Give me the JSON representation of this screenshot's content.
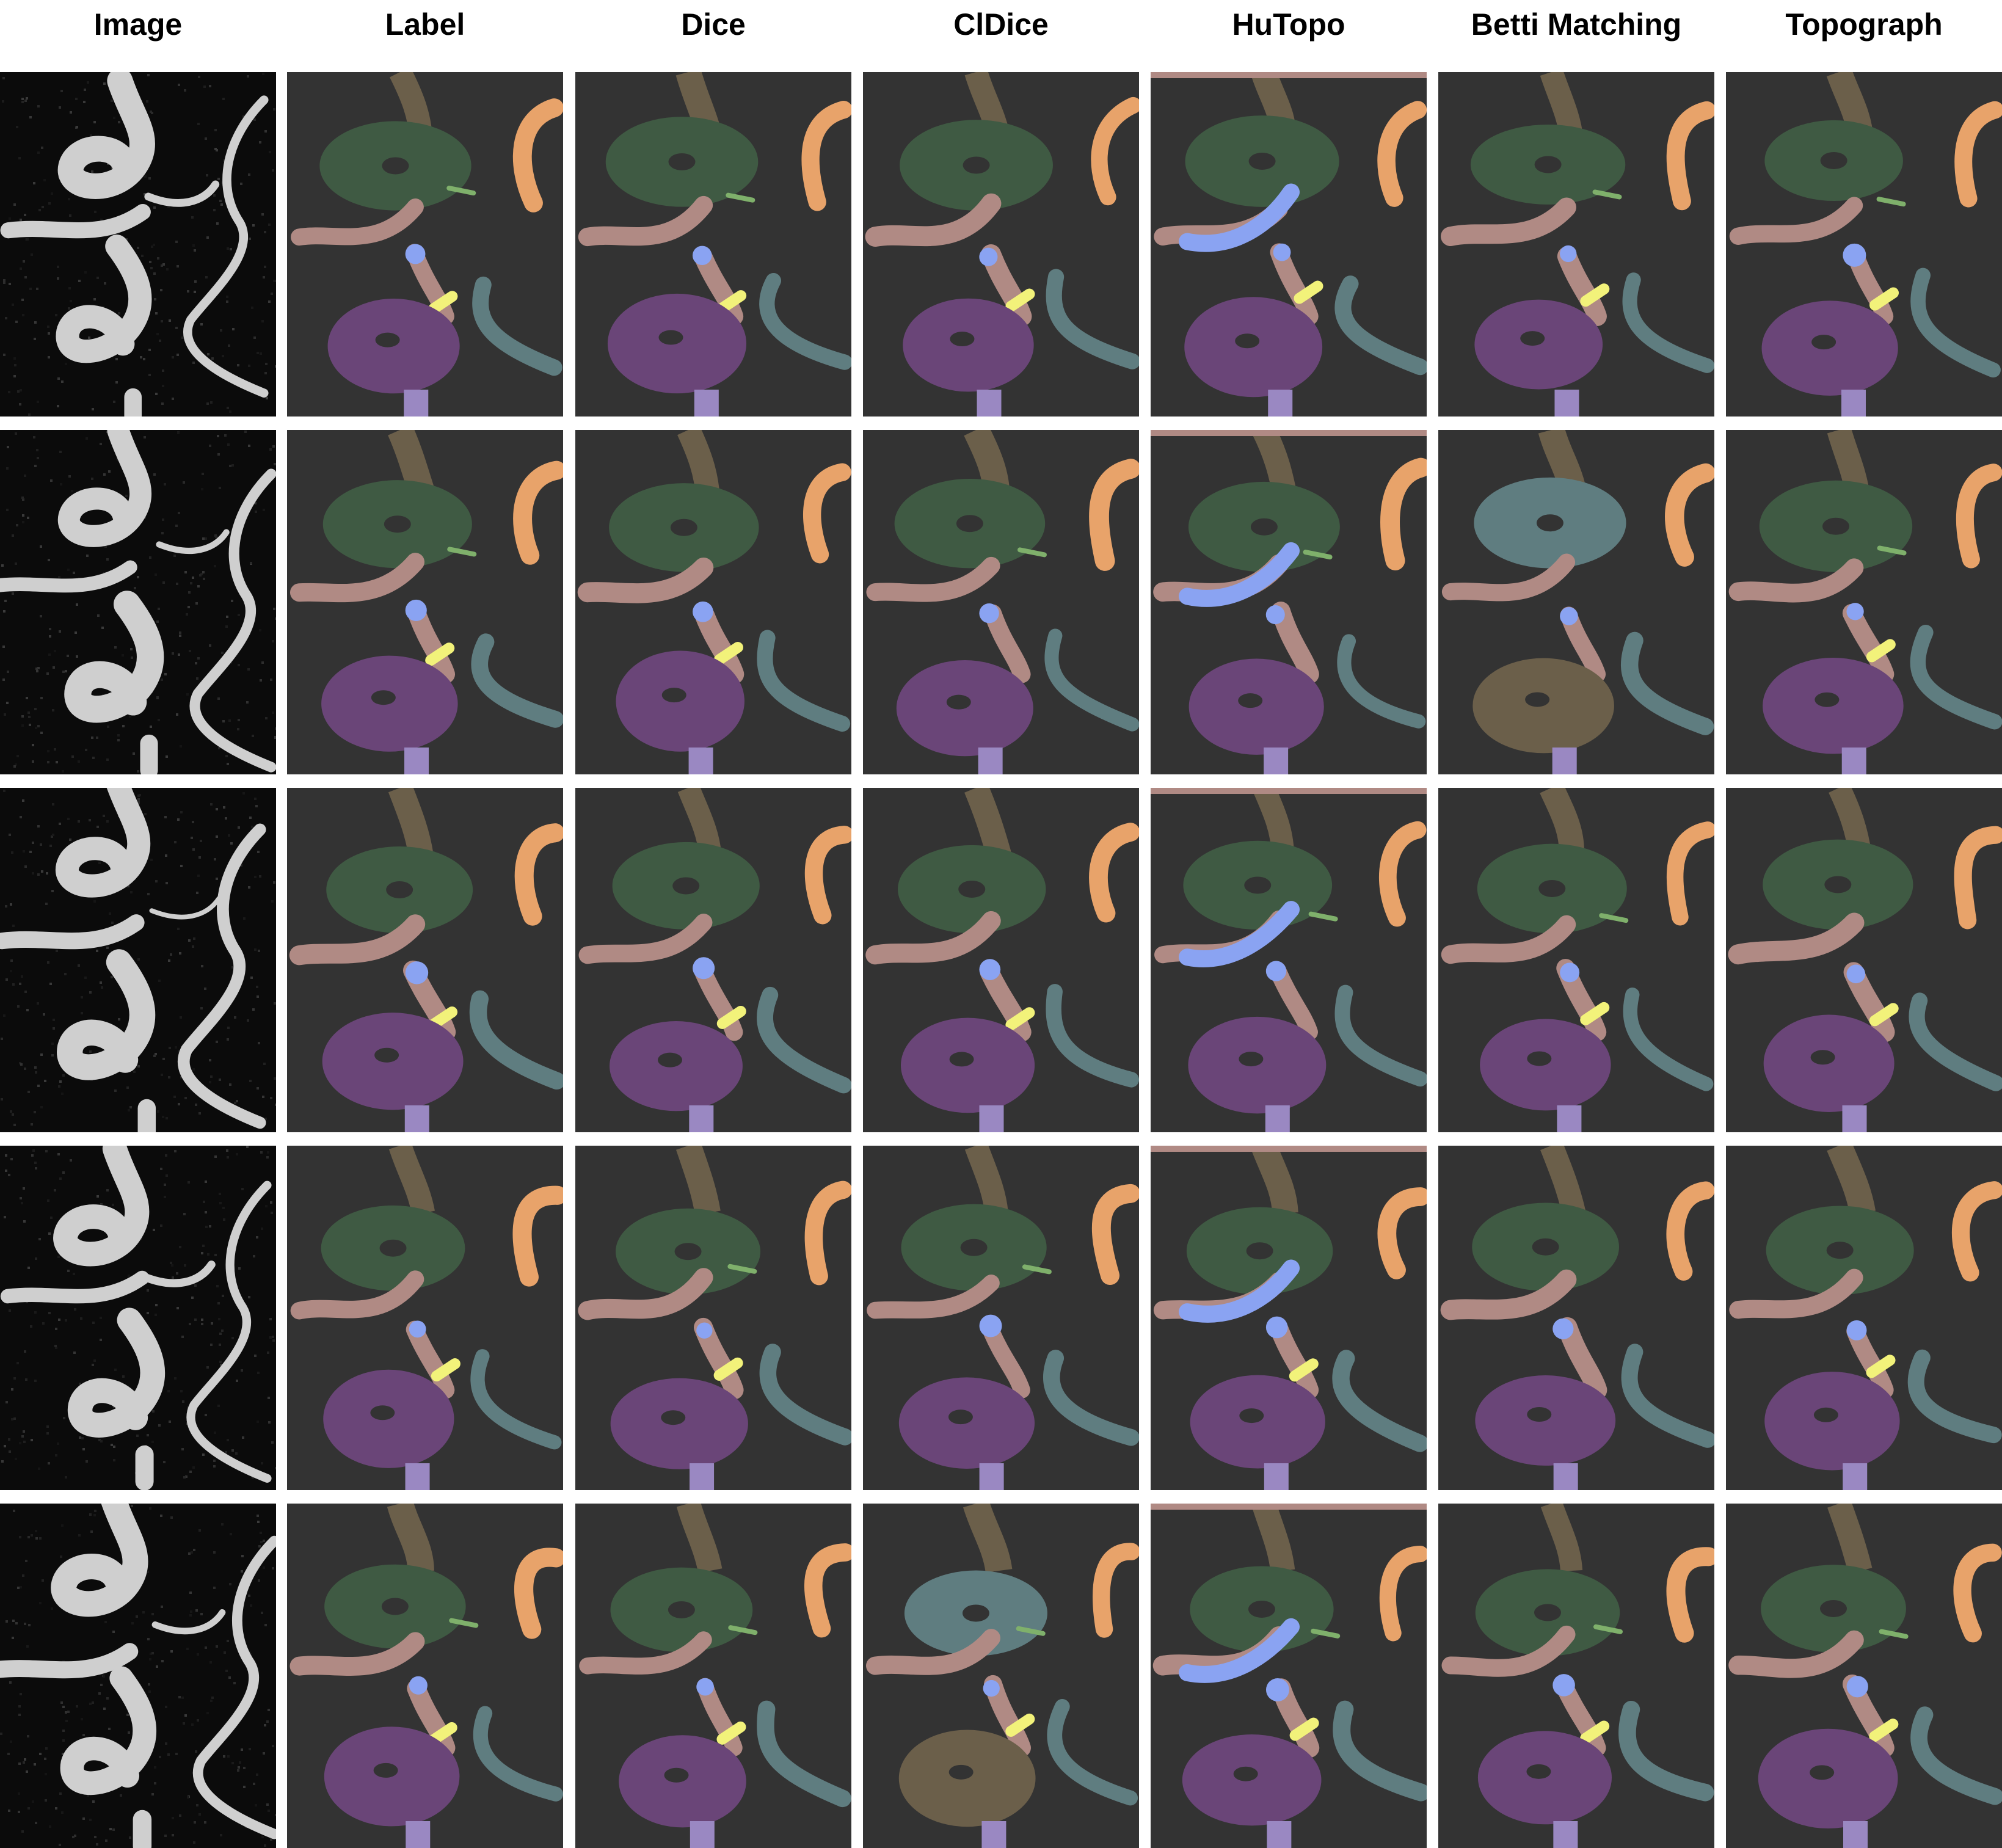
{
  "columns": [
    "Image",
    "Label",
    "Dice",
    "ClDice",
    "HuTopo",
    "Betti Matching",
    "Topograph"
  ],
  "rows": 5,
  "colors": {
    "background": "#333333",
    "ica_top": "#6b5f4a",
    "siphon": "#3f5a43",
    "acom_pcom": "#b08a84",
    "bifurcation": "#8aa3f2",
    "junction_yellow": "#f2f27a",
    "mca": "#e8a36a",
    "pca": "#5f7d80",
    "siphon_lower": "#6a4578",
    "basilar": "#9a88c2",
    "small_green": "#7fb06b"
  }
}
